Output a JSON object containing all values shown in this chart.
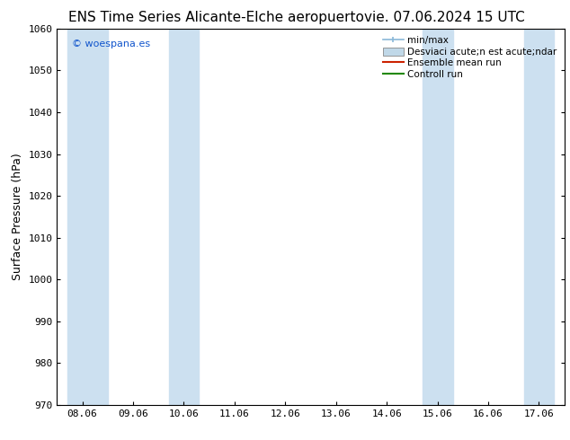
{
  "title": "ENS Time Series Alicante-Elche aeropuerto",
  "date_label": "vie. 07.06.2024 15 UTC",
  "ylabel": "Surface Pressure (hPa)",
  "ylim": [
    970,
    1060
  ],
  "yticks": [
    970,
    980,
    990,
    1000,
    1010,
    1020,
    1030,
    1040,
    1050,
    1060
  ],
  "xtick_labels": [
    "08.06",
    "09.06",
    "10.06",
    "11.06",
    "12.06",
    "13.06",
    "14.06",
    "15.06",
    "16.06",
    "17.06"
  ],
  "xlim": [
    0,
    9
  ],
  "shaded_bands": [
    {
      "xmin": -0.3,
      "xmax": 0.5,
      "color": "#cce0f0"
    },
    {
      "xmin": 1.7,
      "xmax": 2.3,
      "color": "#cce0f0"
    },
    {
      "xmin": 6.7,
      "xmax": 7.3,
      "color": "#cce0f0"
    },
    {
      "xmin": 8.7,
      "xmax": 9.3,
      "color": "#cce0f0"
    }
  ],
  "background_color": "#ffffff",
  "plot_bg_color": "#ffffff",
  "watermark": "© woespana.es",
  "legend_labels": [
    "min/max",
    "Desviaci acute;n est acute;ndar",
    "Ensemble mean run",
    "Controll run"
  ],
  "legend_colors_line": [
    "#8ab8d8",
    "#c0d8e8",
    "#cc2200",
    "#228800"
  ],
  "title_fontsize": 11,
  "axis_label_fontsize": 9,
  "tick_fontsize": 8,
  "legend_fontsize": 7.5
}
